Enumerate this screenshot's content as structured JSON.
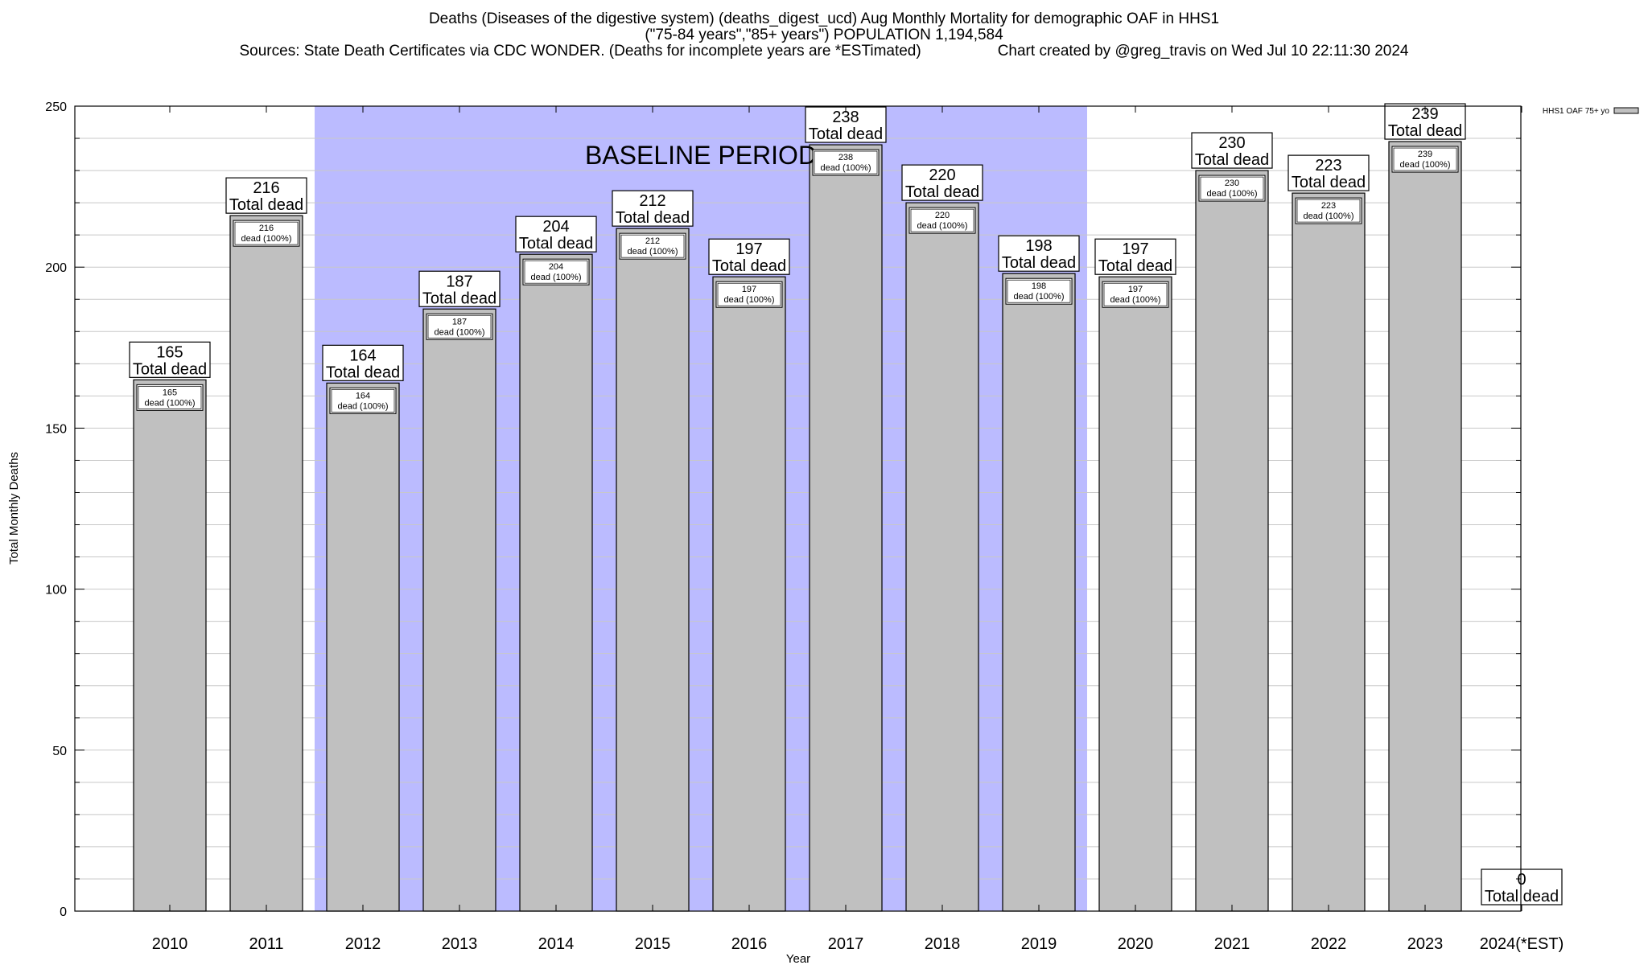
{
  "title": {
    "line1": "Deaths (Diseases of the digestive system) (deaths_digest_ucd) Aug Monthly Mortality for demographic OAF in HHS1",
    "line2": "(\"75-84 years\",\"85+ years\") POPULATION 1,194,584",
    "line3_source": "Sources: State Death Certificates via CDC WONDER. (Deaths for incomplete years are *ESTimated)",
    "line3_credit": "Chart created by @greg_travis on Wed Jul 10 22:11:30 2024"
  },
  "chart_data": {
    "type": "bar",
    "categories": [
      "2010",
      "2011",
      "2012",
      "2013",
      "2014",
      "2015",
      "2016",
      "2017",
      "2018",
      "2019",
      "2020",
      "2021",
      "2022",
      "2023",
      "2024(*EST)"
    ],
    "series": [
      {
        "name": "HHS1 OAF 75+ yo",
        "values": [
          165,
          216,
          164,
          187,
          204,
          212,
          197,
          238,
          220,
          198,
          197,
          230,
          223,
          239,
          0
        ],
        "color": "#c0c0c0"
      }
    ],
    "total_label": "Total dead",
    "inner_label": "dead (100%)",
    "xlabel": "Year",
    "ylabel": "Total Monthly Deaths",
    "ylim": [
      0,
      250
    ],
    "yticks": [
      0,
      50,
      100,
      150,
      200,
      250
    ],
    "minor_ytick_step": 10,
    "grid": true,
    "legend_position": "top-right",
    "baseline": {
      "label": "BASELINE PERIOD",
      "from": "2012",
      "to": "2019",
      "color": "#bbbbff"
    }
  }
}
